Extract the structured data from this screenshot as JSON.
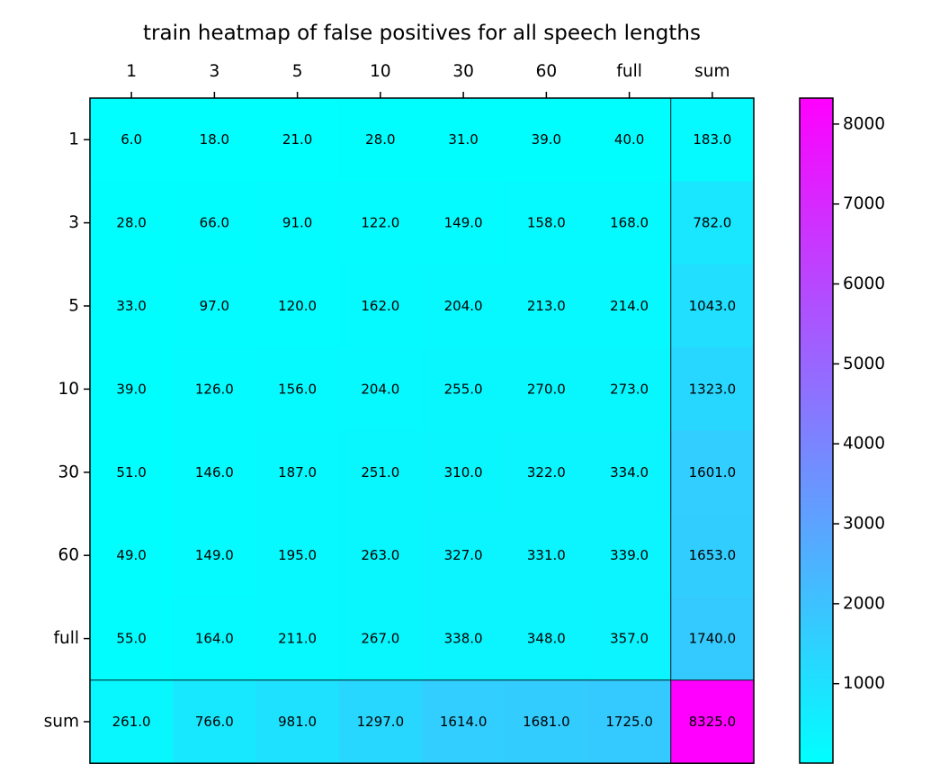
{
  "chart_data": {
    "type": "heatmap",
    "title": "train heatmap of false positives for all speech lengths",
    "x_categories": [
      "1",
      "3",
      "5",
      "10",
      "30",
      "60",
      "full",
      "sum"
    ],
    "y_categories": [
      "1",
      "3",
      "5",
      "10",
      "30",
      "60",
      "full",
      "sum"
    ],
    "values": [
      [
        6.0,
        18.0,
        21.0,
        28.0,
        31.0,
        39.0,
        40.0,
        183.0
      ],
      [
        28.0,
        66.0,
        91.0,
        122.0,
        149.0,
        158.0,
        168.0,
        782.0
      ],
      [
        33.0,
        97.0,
        120.0,
        162.0,
        204.0,
        213.0,
        214.0,
        1043.0
      ],
      [
        39.0,
        126.0,
        156.0,
        204.0,
        255.0,
        270.0,
        273.0,
        1323.0
      ],
      [
        51.0,
        146.0,
        187.0,
        251.0,
        310.0,
        322.0,
        334.0,
        1601.0
      ],
      [
        49.0,
        149.0,
        195.0,
        263.0,
        327.0,
        331.0,
        339.0,
        1653.0
      ],
      [
        55.0,
        164.0,
        211.0,
        267.0,
        338.0,
        348.0,
        357.0,
        1740.0
      ],
      [
        261.0,
        766.0,
        981.0,
        1297.0,
        1614.0,
        1681.0,
        1725.0,
        8325.0
      ]
    ],
    "cell_labels": [
      [
        "6.0",
        "18.0",
        "21.0",
        "28.0",
        "31.0",
        "39.0",
        "40.0",
        "183.0"
      ],
      [
        "28.0",
        "66.0",
        "91.0",
        "122.0",
        "149.0",
        "158.0",
        "168.0",
        "782.0"
      ],
      [
        "33.0",
        "97.0",
        "120.0",
        "162.0",
        "204.0",
        "213.0",
        "214.0",
        "1043.0"
      ],
      [
        "39.0",
        "126.0",
        "156.0",
        "204.0",
        "255.0",
        "270.0",
        "273.0",
        "1323.0"
      ],
      [
        "51.0",
        "146.0",
        "187.0",
        "251.0",
        "310.0",
        "322.0",
        "334.0",
        "1601.0"
      ],
      [
        "49.0",
        "149.0",
        "195.0",
        "263.0",
        "327.0",
        "331.0",
        "339.0",
        "1653.0"
      ],
      [
        "55.0",
        "164.0",
        "211.0",
        "267.0",
        "338.0",
        "348.0",
        "357.0",
        "1740.0"
      ],
      [
        "261.0",
        "766.0",
        "981.0",
        "1297.0",
        "1614.0",
        "1681.0",
        "1725.0",
        "8325.0"
      ]
    ],
    "colormap": "cool",
    "color_low": "#00ffff",
    "color_high": "#ff00ff",
    "color_range": [
      6,
      8325
    ],
    "colorbar": {
      "ticks": [
        1000,
        2000,
        3000,
        4000,
        5000,
        6000,
        7000,
        8000
      ],
      "tick_labels": [
        "1000",
        "2000",
        "3000",
        "4000",
        "5000",
        "6000",
        "7000",
        "8000"
      ],
      "placement": "right"
    },
    "x_axis_position": "top",
    "separator_lines": "before-sum-row-and-column",
    "grid": false
  }
}
